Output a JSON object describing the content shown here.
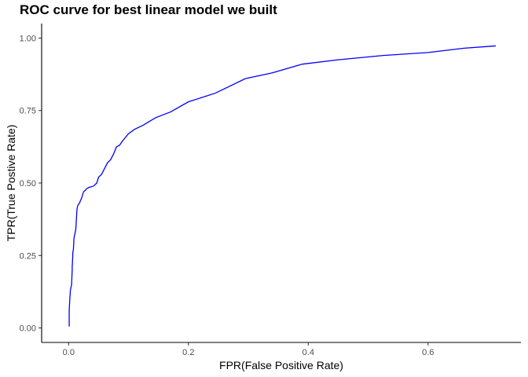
{
  "chart_data": {
    "type": "line",
    "title": "ROC curve for best linear model we built",
    "xlabel": "FPR(False Positive Rate)",
    "ylabel": "TPR(True Postive Rate)",
    "xlim": [
      -0.045,
      0.755
    ],
    "ylim": [
      -0.05,
      1.05
    ],
    "xticks": [
      0.0,
      0.2,
      0.4,
      0.6
    ],
    "xtick_labels": [
      "0.0",
      "0.2",
      "0.4",
      "0.6"
    ],
    "yticks": [
      0.0,
      0.25,
      0.5,
      0.75,
      1.0
    ],
    "ytick_labels": [
      "0.00",
      "0.25",
      "0.50",
      "0.75",
      "1.00"
    ],
    "grid": false,
    "legend": "none",
    "line_color": "#0000ff",
    "series": [
      {
        "x": [
          0.001,
          0.001,
          0.002,
          0.003,
          0.004,
          0.005,
          0.006,
          0.006,
          0.007,
          0.007,
          0.008,
          0.009,
          0.01,
          0.012,
          0.014,
          0.015,
          0.016,
          0.018,
          0.02,
          0.022,
          0.025,
          0.028,
          0.03,
          0.034,
          0.038,
          0.042,
          0.047,
          0.05,
          0.055,
          0.06,
          0.065,
          0.07,
          0.075,
          0.08,
          0.085,
          0.09,
          0.1,
          0.11,
          0.125,
          0.145,
          0.17,
          0.2,
          0.245,
          0.295,
          0.34,
          0.39,
          0.45,
          0.525,
          0.6,
          0.66,
          0.713
        ],
        "y": [
          0.005,
          0.06,
          0.1,
          0.13,
          0.14,
          0.15,
          0.2,
          0.21,
          0.25,
          0.26,
          0.27,
          0.31,
          0.32,
          0.34,
          0.41,
          0.42,
          0.425,
          0.43,
          0.44,
          0.45,
          0.47,
          0.475,
          0.48,
          0.485,
          0.487,
          0.49,
          0.5,
          0.52,
          0.53,
          0.55,
          0.57,
          0.58,
          0.6,
          0.625,
          0.63,
          0.645,
          0.67,
          0.685,
          0.7,
          0.725,
          0.745,
          0.78,
          0.81,
          0.86,
          0.88,
          0.91,
          0.925,
          0.94,
          0.95,
          0.965,
          0.973
        ]
      }
    ]
  }
}
